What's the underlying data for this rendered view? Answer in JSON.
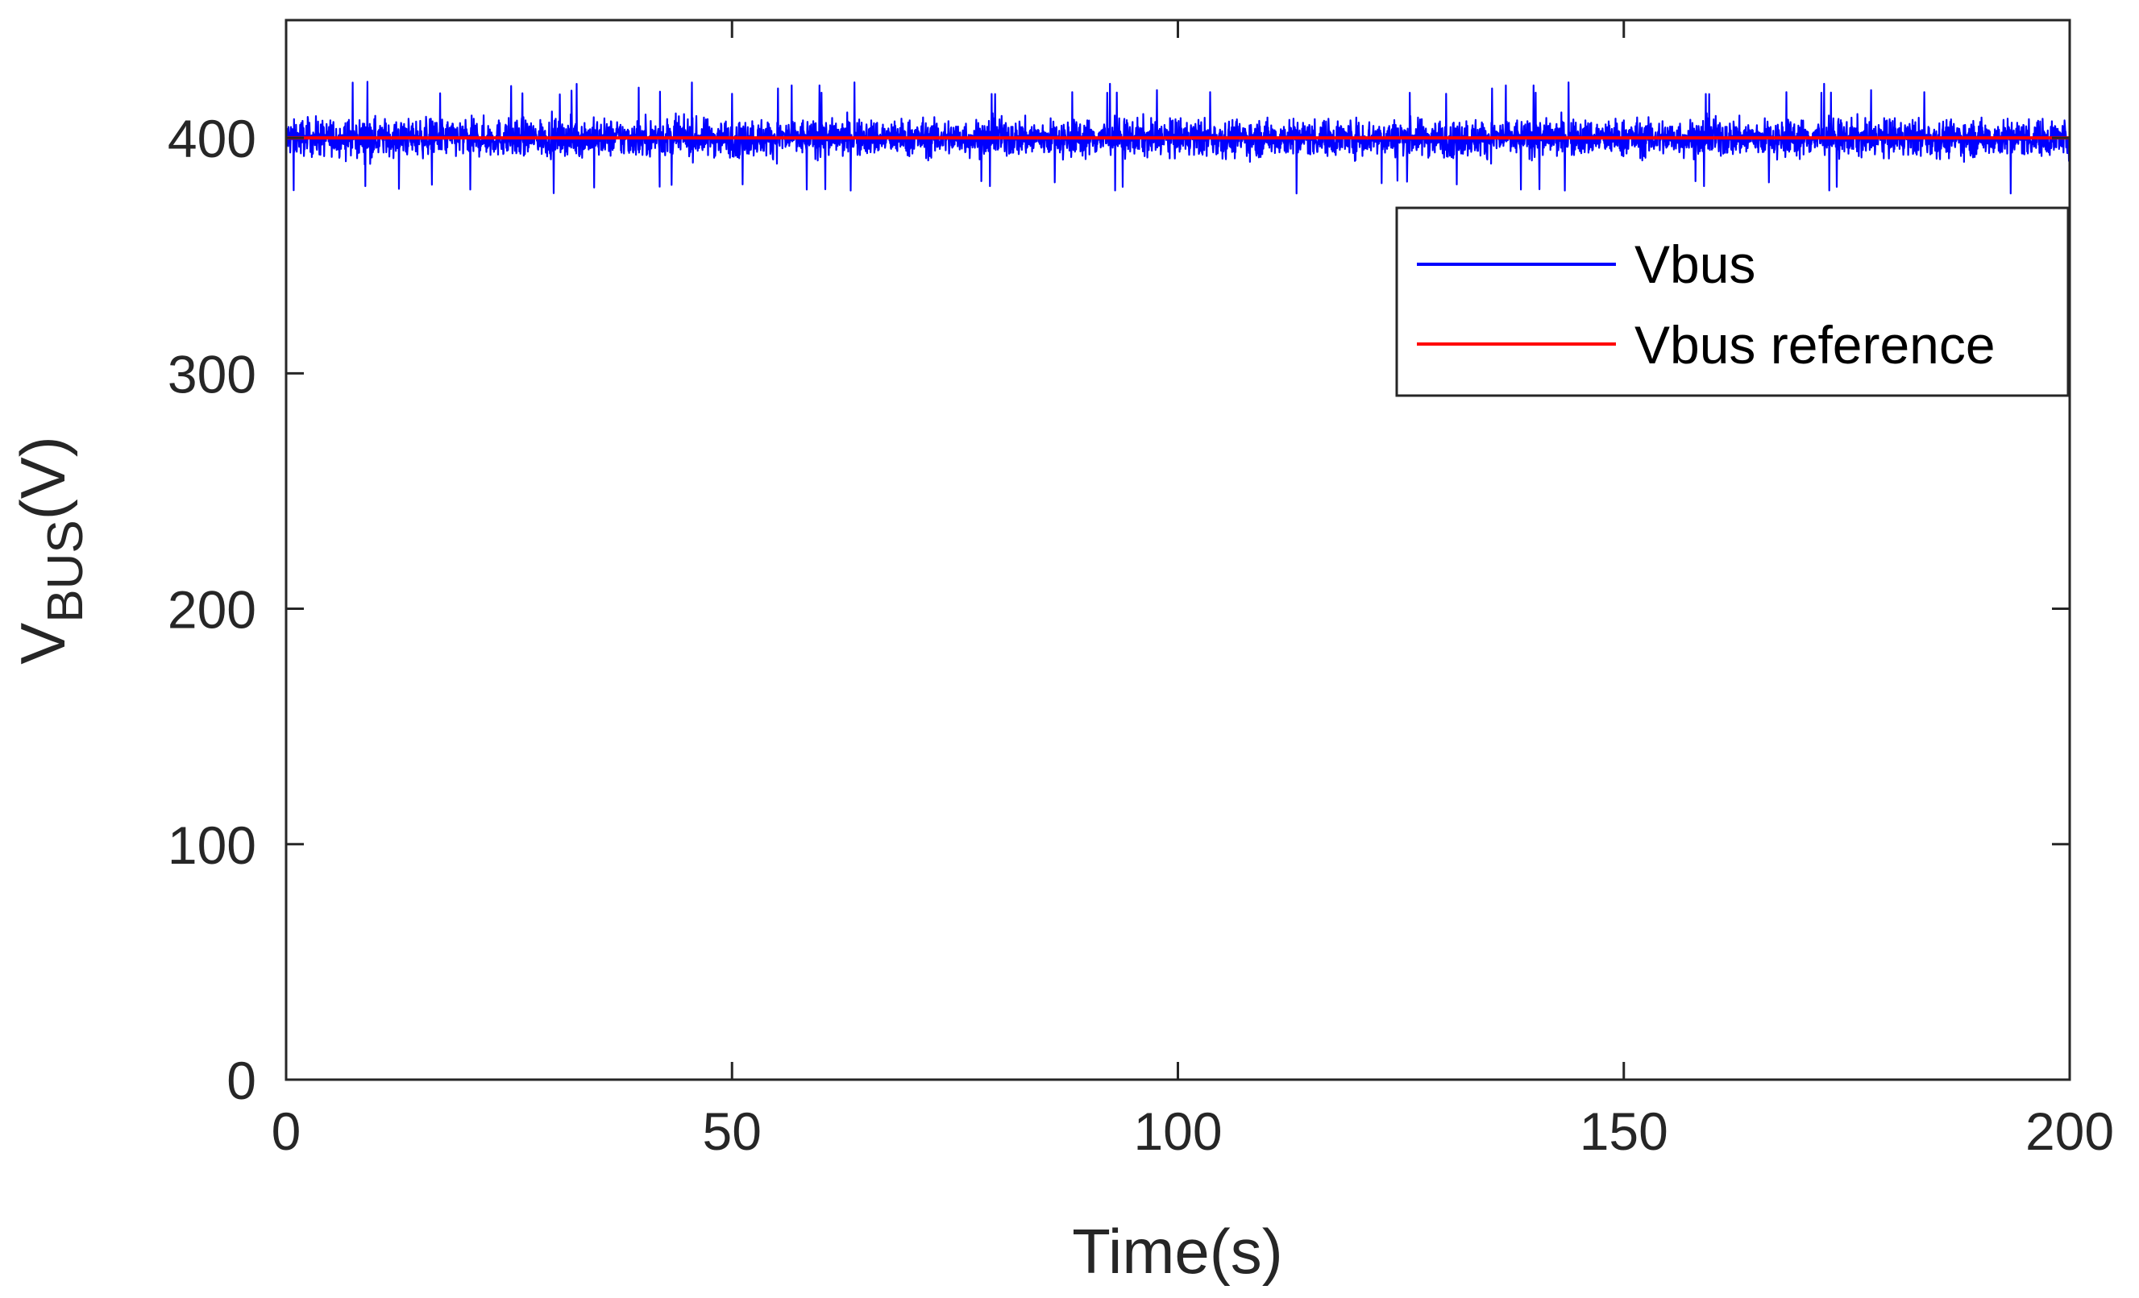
{
  "chart_data": {
    "type": "line",
    "title": "",
    "xlabel": "Time(s)",
    "ylabel_main": "V",
    "ylabel_sub": "BUS",
    "ylabel_suffix": "(V)",
    "xlim": [
      0,
      200
    ],
    "ylim": [
      0,
      450
    ],
    "x_ticks": [
      0,
      50,
      100,
      150,
      200
    ],
    "y_ticks": [
      0,
      100,
      200,
      300,
      400
    ],
    "x_tick_labels": [
      "0",
      "50",
      "100",
      "150",
      "200"
    ],
    "y_tick_labels": [
      "0",
      "100",
      "200",
      "300",
      "400"
    ],
    "grid": false,
    "legend_position": "top-right",
    "series": [
      {
        "name": "Vbus",
        "color": "#0000ff",
        "mean": 400,
        "band_min": 373,
        "band_max": 424,
        "x_range": [
          0,
          200
        ]
      },
      {
        "name": "Vbus reference",
        "color": "#ff0000",
        "value": 400,
        "x_range": [
          0,
          200
        ]
      }
    ]
  }
}
